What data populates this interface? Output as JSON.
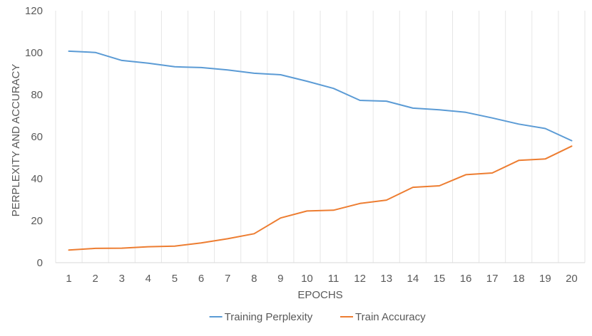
{
  "chart_data": {
    "type": "line",
    "title": "",
    "xlabel": "EPOCHS",
    "ylabel": "PERPLEXITY AND ACCURACY",
    "ylim": [
      0,
      120
    ],
    "yticks": [
      0,
      20,
      40,
      60,
      80,
      100,
      120
    ],
    "categories": [
      "1",
      "2",
      "3",
      "4",
      "5",
      "6",
      "7",
      "8",
      "9",
      "10",
      "11",
      "12",
      "13",
      "14",
      "15",
      "16",
      "17",
      "18",
      "19",
      "20"
    ],
    "grid": "vertical",
    "legend_position": "bottom",
    "series": [
      {
        "name": "Training Perplexity",
        "color": "#5B9BD5",
        "values": [
          100.7,
          100.1,
          96.3,
          95.0,
          93.3,
          92.9,
          91.8,
          90.2,
          89.5,
          86.4,
          83.0,
          77.3,
          76.9,
          73.6,
          72.8,
          71.6,
          68.9,
          66.0,
          63.9,
          58.1
        ]
      },
      {
        "name": "Train Accuracy",
        "color": "#ED7D31",
        "values": [
          6.0,
          6.8,
          6.9,
          7.6,
          7.9,
          9.4,
          11.4,
          13.8,
          21.3,
          24.6,
          25.0,
          28.2,
          29.8,
          35.9,
          36.6,
          41.9,
          42.7,
          48.7,
          49.4,
          55.5
        ]
      }
    ]
  }
}
